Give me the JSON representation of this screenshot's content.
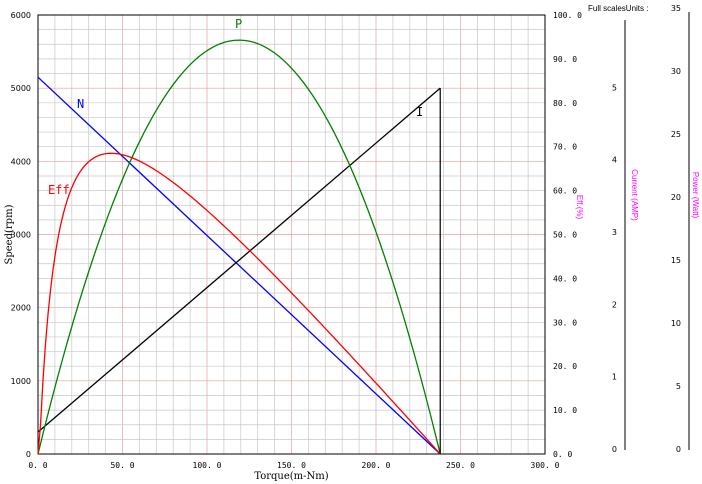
{
  "chart_data": {
    "type": "line",
    "x": {
      "label": "Torque(m-Nm)",
      "range": [
        0,
        300
      ],
      "ticks": [
        "0. 0",
        "50. 0",
        "100. 0",
        "150. 0",
        "200. 0",
        "250. 0",
        "300. 0"
      ]
    },
    "speed_axis": {
      "label": "Speed(rpm)",
      "range": [
        0,
        6000
      ],
      "ticks": [
        "0",
        "1000",
        "2000",
        "3000",
        "4000",
        "5000",
        "6000"
      ]
    },
    "eff_axis": {
      "label": "Eff.(%)",
      "range": [
        0,
        100
      ],
      "ticks": [
        "0. 0",
        "10. 0",
        "20. 0",
        "30. 0",
        "40. 0",
        "50. 0",
        "60. 0",
        "70. 0",
        "80. 0",
        "90. 0",
        "100. 0"
      ]
    },
    "header": "Full scalesUnits :",
    "current_axis": {
      "label": "Current (AMP)",
      "range": [
        0,
        6
      ],
      "ticks": [
        "0",
        "1",
        "2",
        "3",
        "4",
        "5"
      ]
    },
    "power_axis": {
      "label": "Power (Watt)",
      "range": [
        0,
        35
      ],
      "ticks": [
        "0",
        "5",
        "10",
        "15",
        "20",
        "25",
        "30",
        "35"
      ]
    },
    "series": [
      {
        "name": "N",
        "axis": "speed",
        "color": "#0000ff",
        "kind": "line",
        "x": [
          0,
          238
        ],
        "y": [
          5150,
          0
        ]
      },
      {
        "name": "I",
        "axis": "current",
        "color": "#000000",
        "kind": "line",
        "x": [
          0,
          238
        ],
        "y": [
          0.3,
          5.0
        ]
      },
      {
        "name": "P",
        "axis": "power",
        "color": "#008000",
        "kind": "parabola",
        "stall_torque": 238,
        "peak_x": 119,
        "peak_y": 33.0
      },
      {
        "name": "Eff",
        "axis": "eff",
        "color": "#ff0000",
        "kind": "efficiency",
        "stall_torque": 238,
        "peak_x": 47,
        "peak_y": 68.5
      }
    ],
    "grid": true,
    "colors": {
      "grid": "#c8c8c8",
      "grid_major": "#e6a0a0",
      "axis_label_secondary": "#ff00ff"
    }
  }
}
